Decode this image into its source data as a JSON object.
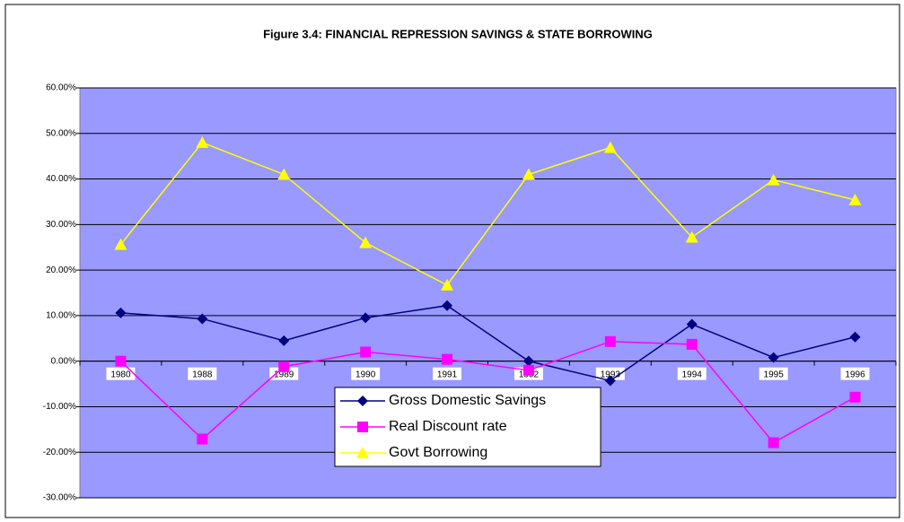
{
  "chart_data": {
    "type": "line",
    "title": "Figure 3.4: FINANCIAL REPRESSION SAVINGS & STATE BORROWING",
    "categories": [
      "1980",
      "1988",
      "1989",
      "1990",
      "1991",
      "1992",
      "1993",
      "1994",
      "1995",
      "1996"
    ],
    "series": [
      {
        "name": "Gross Domestic Savings",
        "color": "#000080",
        "marker": "diamond",
        "values": [
          10.6,
          9.3,
          4.5,
          9.5,
          12.2,
          0.0,
          -4.3,
          8.1,
          0.8,
          5.3
        ]
      },
      {
        "name": "Real Discount rate",
        "color": "#ff00ff",
        "marker": "square",
        "values": [
          0.0,
          -17.1,
          -1.2,
          2.0,
          0.4,
          -2.0,
          4.3,
          3.7,
          -17.9,
          -7.9
        ]
      },
      {
        "name": "Govt Borrowing",
        "color": "#ffff00",
        "marker": "triangle",
        "values": [
          25.6,
          48.0,
          41.0,
          26.0,
          16.7,
          41.0,
          46.9,
          27.2,
          39.8,
          35.4
        ]
      }
    ],
    "ylim": [
      -30,
      60
    ],
    "yticks": [
      {
        "value": -30,
        "label": "-30.00%"
      },
      {
        "value": -20,
        "label": "-20.00%"
      },
      {
        "value": -10,
        "label": "-10.00%"
      },
      {
        "value": 0,
        "label": "0.00%"
      },
      {
        "value": 10,
        "label": "10.00%"
      },
      {
        "value": 20,
        "label": "20.00%"
      },
      {
        "value": 30,
        "label": "30.00%"
      },
      {
        "value": 40,
        "label": "40.00%"
      },
      {
        "value": 50,
        "label": "50.00%"
      },
      {
        "value": 60,
        "label": "60.00%"
      }
    ],
    "grid": true,
    "legend": "bottom",
    "plot_background": "#9999ff"
  }
}
